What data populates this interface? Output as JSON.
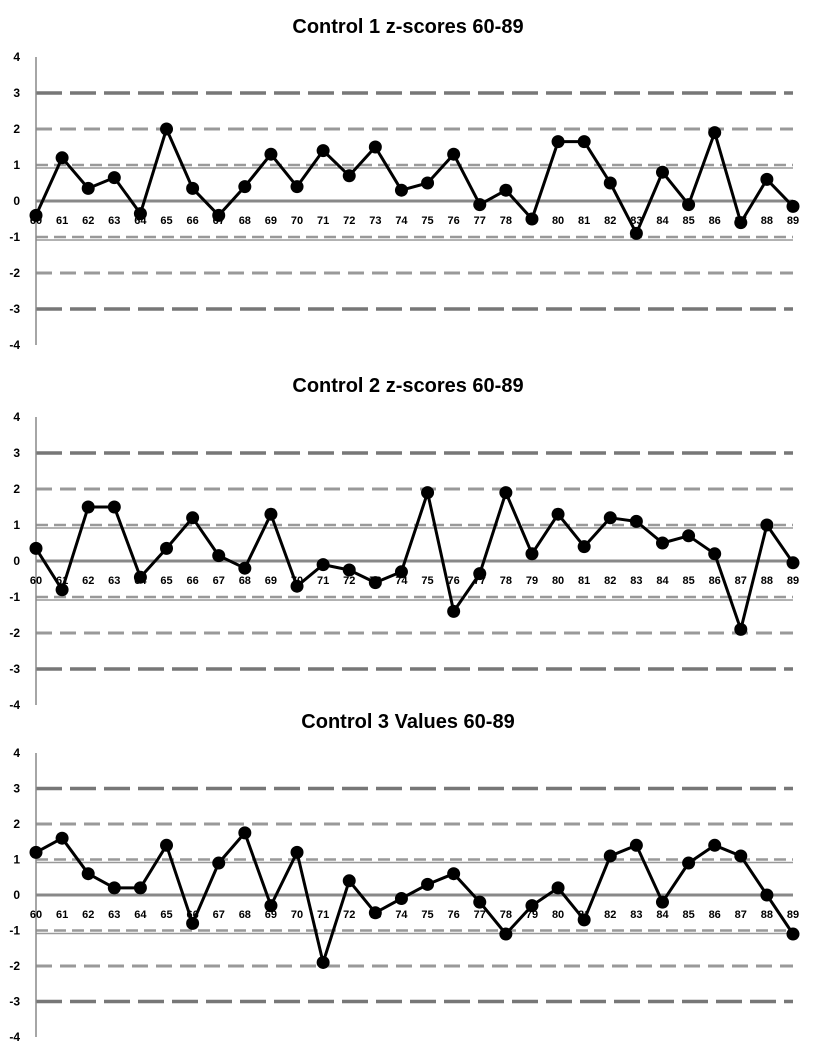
{
  "chart_data": [
    {
      "type": "line",
      "title": "Control 1 z-scores 60-89",
      "xlabel": "",
      "ylabel": "",
      "ylim": [
        -4,
        4
      ],
      "y_ticks": [
        "4",
        "3",
        "2",
        "1",
        "0",
        "-1",
        "-2",
        "-3",
        "-4"
      ],
      "categories": [
        "60",
        "61",
        "62",
        "63",
        "64",
        "65",
        "66",
        "67",
        "68",
        "69",
        "70",
        "71",
        "72",
        "73",
        "74",
        "75",
        "76",
        "77",
        "78",
        "79",
        "80",
        "81",
        "82",
        "83",
        "84",
        "85",
        "86",
        "87",
        "88",
        "89"
      ],
      "values": [
        -0.4,
        1.2,
        0.35,
        0.65,
        -0.35,
        2.0,
        0.35,
        -0.4,
        0.4,
        1.3,
        0.4,
        1.4,
        0.7,
        1.5,
        0.3,
        0.5,
        1.3,
        -0.1,
        0.3,
        -0.5,
        1.65,
        1.65,
        0.5,
        -0.9,
        0.8,
        -0.1,
        1.9,
        -0.6,
        0.6,
        -0.15
      ],
      "reference_lines": [
        3,
        2,
        1,
        -1,
        -2,
        -3
      ],
      "colors": {
        "line": "#000000",
        "marker": "#000000",
        "ref_line": "#777777",
        "ref_line_light": "#999999",
        "zero_line": "#888888",
        "axis": "#888888"
      }
    },
    {
      "type": "line",
      "title": "Control 2 z-scores 60-89",
      "xlabel": "",
      "ylabel": "",
      "ylim": [
        -4,
        4
      ],
      "y_ticks": [
        "4",
        "3",
        "2",
        "1",
        "0",
        "-1",
        "-2",
        "-3",
        "-4"
      ],
      "categories": [
        "60",
        "61",
        "62",
        "63",
        "64",
        "65",
        "66",
        "67",
        "68",
        "69",
        "70",
        "71",
        "72",
        "73",
        "74",
        "75",
        "76",
        "77",
        "78",
        "79",
        "80",
        "81",
        "82",
        "83",
        "84",
        "85",
        "86",
        "87",
        "88",
        "89"
      ],
      "values": [
        0.35,
        -0.8,
        1.5,
        1.5,
        -0.45,
        0.35,
        1.2,
        0.15,
        -0.2,
        1.3,
        -0.7,
        -0.1,
        -0.25,
        -0.6,
        -0.3,
        1.9,
        -1.4,
        -0.35,
        1.9,
        0.2,
        1.3,
        0.4,
        1.2,
        1.1,
        0.5,
        0.7,
        0.2,
        -1.9,
        1.0,
        -0.05
      ],
      "reference_lines": [
        3,
        2,
        1,
        -1,
        -2,
        -3
      ],
      "colors": {
        "line": "#000000",
        "marker": "#000000",
        "ref_line": "#777777",
        "ref_line_light": "#999999",
        "zero_line": "#888888",
        "axis": "#888888"
      }
    },
    {
      "type": "line",
      "title": "Control 3 Values 60-89",
      "xlabel": "",
      "ylabel": "",
      "ylim": [
        -4,
        4
      ],
      "y_ticks": [
        "4",
        "3",
        "2",
        "1",
        "0",
        "-1",
        "-2",
        "-3",
        "-4"
      ],
      "categories": [
        "60",
        "61",
        "62",
        "63",
        "64",
        "65",
        "66",
        "67",
        "68",
        "69",
        "70",
        "71",
        "72",
        "73",
        "74",
        "75",
        "76",
        "77",
        "78",
        "79",
        "80",
        "81",
        "82",
        "83",
        "84",
        "85",
        "86",
        "87",
        "88",
        "89"
      ],
      "values": [
        1.2,
        1.6,
        0.6,
        0.2,
        0.2,
        1.4,
        -0.8,
        0.9,
        1.75,
        -0.3,
        1.2,
        -1.9,
        0.4,
        -0.5,
        -0.1,
        0.3,
        0.6,
        -0.2,
        -1.1,
        -0.3,
        0.2,
        -0.7,
        1.1,
        1.4,
        -0.2,
        0.9,
        1.4,
        1.1,
        0.0,
        -1.1
      ],
      "reference_lines": [
        3,
        2,
        1,
        -1,
        -2,
        -3
      ],
      "colors": {
        "line": "#000000",
        "marker": "#000000",
        "ref_line": "#777777",
        "ref_line_light": "#999999",
        "zero_line": "#888888",
        "axis": "#888888"
      }
    }
  ]
}
